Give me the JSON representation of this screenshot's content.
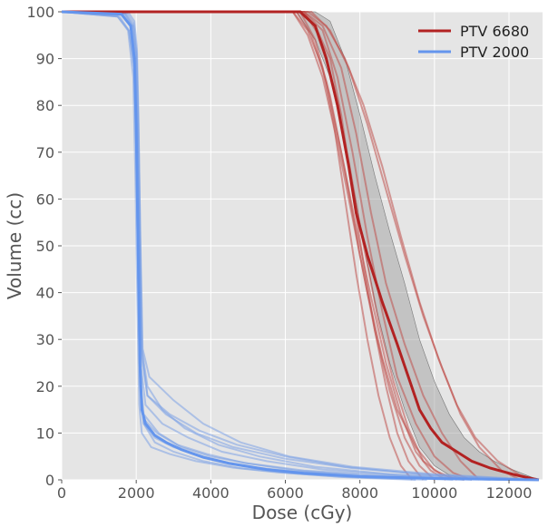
{
  "chart_data": {
    "type": "line",
    "title": "",
    "xlabel": "Dose (cGy)",
    "ylabel": "Volume (cc)",
    "xlim": [
      0,
      12900
    ],
    "ylim": [
      0,
      100
    ],
    "xticks": [
      0,
      2000,
      4000,
      6000,
      8000,
      10000,
      12000
    ],
    "yticks": [
      0,
      10,
      20,
      30,
      40,
      50,
      60,
      70,
      80,
      90,
      100
    ],
    "grid": true,
    "background": "#e5e5e5",
    "legend_position": "top-right",
    "series": [
      {
        "name": "PTV 6680",
        "color": "#b22222",
        "x": [
          0,
          6400,
          6800,
          7100,
          7400,
          7700,
          7900,
          8200,
          8600,
          9000,
          9300,
          9600,
          9900,
          10200,
          10600,
          11000,
          11500,
          12100,
          12600,
          12800
        ],
        "y": [
          100,
          100,
          97,
          90,
          80,
          67,
          57,
          48,
          38,
          29,
          22,
          15,
          11,
          8,
          6,
          4,
          2.5,
          1.2,
          0.3,
          0
        ]
      },
      {
        "name": "PTV 2000",
        "color": "#6495ed",
        "x": [
          0,
          1600,
          1850,
          1950,
          2000,
          2050,
          2100,
          2150,
          2250,
          2500,
          2800,
          3200,
          3800,
          4500,
          5500,
          6500,
          8000,
          10000,
          12800
        ],
        "y": [
          100,
          99.5,
          97,
          90,
          75,
          50,
          25,
          15,
          12,
          9.5,
          8,
          6.5,
          4.8,
          3.5,
          2.2,
          1.4,
          0.7,
          0.3,
          0
        ]
      }
    ],
    "band": {
      "color": "#999999",
      "x": [
        6300,
        6800,
        7200,
        7600,
        8000,
        8400,
        8800,
        9200,
        9600,
        10000,
        10400,
        10800,
        11200,
        11600,
        12000,
        12400,
        12800
      ],
      "upper": [
        100,
        100,
        98,
        90,
        78,
        65,
        53,
        42,
        30,
        21,
        14,
        9,
        6,
        4,
        2.5,
        1.2,
        0
      ],
      "lower": [
        100,
        94,
        86,
        72,
        55,
        38,
        25,
        15,
        7,
        3,
        1,
        0.3,
        0,
        0,
        0,
        0,
        0
      ]
    },
    "individual_red": [
      {
        "x": [
          0,
          6200,
          6600,
          7000,
          7300,
          7600,
          7900,
          8200,
          8500,
          8800,
          9100,
          9400
        ],
        "y": [
          100,
          100,
          96,
          88,
          76,
          60,
          44,
          30,
          18,
          9,
          3,
          0
        ]
      },
      {
        "x": [
          0,
          6400,
          6800,
          7200,
          7500,
          7800,
          8100,
          8400,
          8700,
          9000,
          9300,
          9700
        ],
        "y": [
          100,
          100,
          97,
          90,
          78,
          62,
          46,
          32,
          20,
          10,
          4,
          0
        ]
      },
      {
        "x": [
          0,
          6500,
          7000,
          7500,
          7900,
          8300,
          8700,
          9200,
          9700,
          10200,
          10700,
          11200
        ],
        "y": [
          100,
          100,
          97,
          88,
          74,
          57,
          42,
          29,
          18,
          10,
          4,
          0
        ]
      },
      {
        "x": [
          0,
          6500,
          7000,
          7400,
          7800,
          8200,
          8600,
          9000,
          9500,
          10000,
          10500,
          11000
        ],
        "y": [
          100,
          100,
          96,
          86,
          70,
          52,
          36,
          22,
          12,
          5,
          1.5,
          0
        ]
      },
      {
        "x": [
          0,
          6300,
          6700,
          7100,
          7500,
          7900,
          8300,
          8700,
          9100,
          9500,
          9900,
          10300
        ],
        "y": [
          100,
          100,
          95,
          85,
          70,
          54,
          39,
          25,
          14,
          6,
          2,
          0
        ]
      },
      {
        "x": [
          0,
          6600,
          7100,
          7600,
          8100,
          8600,
          9100,
          9600,
          10100,
          10600,
          11100,
          11700,
          12300,
          12700
        ],
        "y": [
          100,
          100,
          97,
          90,
          80,
          67,
          52,
          38,
          26,
          16,
          9,
          4,
          1,
          0
        ]
      },
      {
        "x": [
          0,
          6700,
          7200,
          7700,
          8200,
          8700,
          9200,
          9700,
          10200,
          10700,
          11200,
          11800,
          12300
        ],
        "y": [
          100,
          100,
          96,
          88,
          76,
          62,
          48,
          35,
          24,
          14,
          7,
          2,
          0
        ]
      },
      {
        "x": [
          0,
          6400,
          6800,
          7200,
          7600,
          8000,
          8400,
          8800,
          9200,
          9600,
          10000
        ],
        "y": [
          100,
          100,
          94,
          82,
          66,
          48,
          32,
          19,
          9,
          3,
          0
        ]
      },
      {
        "x": [
          0,
          6500,
          6900,
          7300,
          7700,
          8100,
          8500,
          8900,
          9300,
          9700,
          10200,
          10800
        ],
        "y": [
          100,
          100,
          95,
          84,
          68,
          50,
          34,
          21,
          11,
          4,
          1,
          0
        ]
      },
      {
        "x": [
          0,
          6200,
          6600,
          7000,
          7400,
          7800,
          8200,
          8600,
          9000,
          9500,
          10000,
          10600
        ],
        "y": [
          100,
          100,
          95,
          86,
          72,
          56,
          40,
          26,
          15,
          7,
          2,
          0
        ]
      }
    ],
    "individual_blue": [
      {
        "x": [
          0,
          1500,
          1800,
          1950,
          2000,
          2050,
          2100,
          2200,
          2600,
          3200,
          4000,
          5000,
          6500,
          8500,
          11000
        ],
        "y": [
          100,
          99,
          96,
          88,
          70,
          45,
          22,
          14,
          10,
          7,
          5,
          3.5,
          2,
          1,
          0
        ]
      },
      {
        "x": [
          0,
          1600,
          1850,
          1980,
          2030,
          2080,
          2120,
          2200,
          2500,
          3000,
          3800,
          4800,
          6200,
          8000,
          10500
        ],
        "y": [
          100,
          99.5,
          97,
          88,
          65,
          40,
          18,
          12,
          9,
          7,
          5,
          3,
          1.8,
          0.8,
          0
        ]
      },
      {
        "x": [
          0,
          1700,
          1900,
          2000,
          2050,
          2100,
          2150,
          2300,
          2800,
          3600,
          4600,
          6000,
          7800,
          10000,
          12500
        ],
        "y": [
          100,
          99.6,
          97,
          90,
          74,
          50,
          26,
          18,
          14,
          10,
          7,
          4.5,
          2.5,
          1,
          0
        ]
      },
      {
        "x": [
          0,
          1550,
          1800,
          1950,
          2000,
          2050,
          2100,
          2200,
          2500,
          3000,
          3800,
          4800,
          6000,
          7500,
          9500
        ],
        "y": [
          100,
          99,
          96,
          88,
          70,
          42,
          20,
          12,
          8,
          6,
          4,
          2.5,
          1.5,
          0.6,
          0
        ]
      },
      {
        "x": [
          0,
          1650,
          1880,
          1980,
          2030,
          2080,
          2130,
          2250,
          2700,
          3400,
          4300,
          5500,
          7000,
          9000,
          11800
        ],
        "y": [
          100,
          99.5,
          97,
          90,
          72,
          48,
          24,
          16,
          12,
          9,
          6,
          4,
          2.2,
          1,
          0
        ]
      },
      {
        "x": [
          0,
          1800,
          1950,
          2020,
          2060,
          2100,
          2150,
          2300,
          2700,
          3300,
          4200,
          5300,
          6800,
          8800,
          11500
        ],
        "y": [
          100,
          99.7,
          98,
          92,
          78,
          55,
          28,
          20,
          15,
          11,
          7.5,
          5,
          2.8,
          1.2,
          0
        ]
      },
      {
        "x": [
          0,
          1500,
          1780,
          1920,
          1980,
          2030,
          2080,
          2150,
          2400,
          2900,
          3600,
          4600,
          5800,
          7400,
          9800
        ],
        "y": [
          100,
          99,
          96,
          86,
          64,
          38,
          16,
          10,
          7,
          5.5,
          4,
          2.6,
          1.6,
          0.7,
          0
        ]
      },
      {
        "x": [
          0,
          1700,
          1920,
          2000,
          2050,
          2100,
          2160,
          2300,
          2900,
          3700,
          4700,
          6000,
          7600,
          9700,
          12600
        ],
        "y": [
          100,
          99.6,
          97,
          91,
          76,
          52,
          27,
          18,
          14,
          10.5,
          7.5,
          5,
          2.8,
          1.1,
          0
        ]
      },
      {
        "x": [
          0,
          1600,
          1860,
          1970,
          2020,
          2070,
          2110,
          2200,
          2550,
          3100,
          3900,
          4900,
          6300,
          8200,
          10800
        ],
        "y": [
          100,
          99.4,
          97,
          89,
          68,
          44,
          20,
          13,
          10,
          7.5,
          5.5,
          3.6,
          2,
          0.9,
          0
        ]
      },
      {
        "x": [
          0,
          1750,
          1930,
          2010,
          2060,
          2110,
          2170,
          2350,
          3000,
          3800,
          4800,
          6100,
          7800,
          10000,
          12800
        ],
        "y": [
          100,
          99.6,
          97.5,
          91,
          76,
          52,
          28,
          22,
          17,
          12,
          8,
          5,
          2.8,
          1.2,
          0
        ]
      }
    ]
  }
}
